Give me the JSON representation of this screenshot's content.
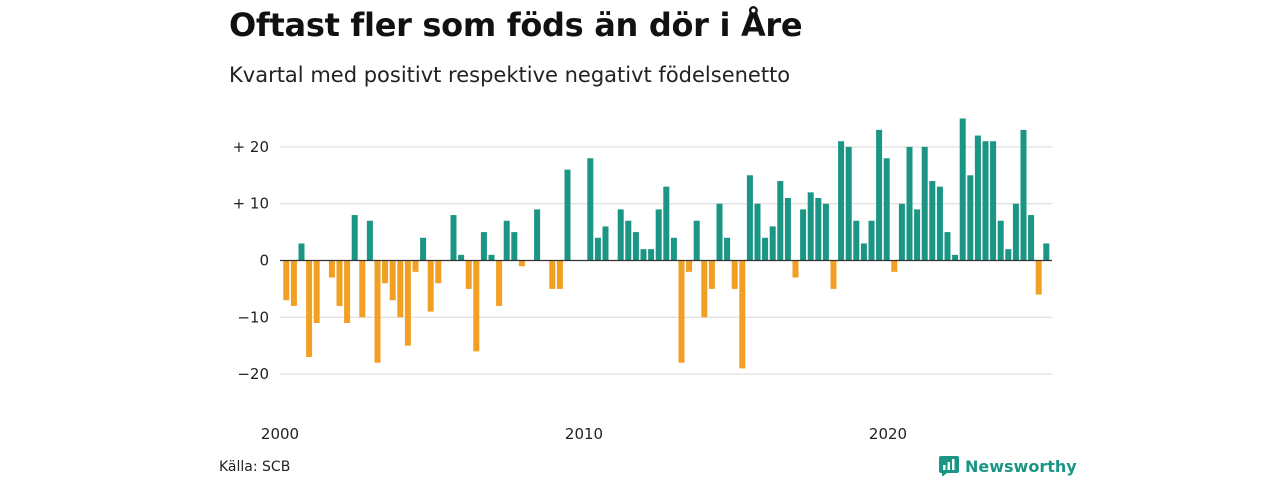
{
  "title": "Oftast fler som föds än dör i Åre",
  "subtitle": "Kvartal med positivt respektive negativt födelsenetto",
  "source": "Källa: SCB",
  "brand": "Newsworthy",
  "colors": {
    "positive": "#1b9584",
    "negative": "#f2a023",
    "grid": "#d9d9d9",
    "zero": "#333333"
  },
  "chart_data": {
    "type": "bar",
    "x_start": "2000-Q1",
    "x_ticks": [
      "2000",
      "2010",
      "2020"
    ],
    "y_ticks": [
      "+ 20",
      "+ 10",
      "0",
      "−10",
      "−20"
    ],
    "ylim": [
      -24,
      24
    ],
    "categories": [
      "2000-Q1",
      "2000-Q2",
      "2000-Q3",
      "2000-Q4",
      "2001-Q1",
      "2001-Q2",
      "2001-Q3",
      "2001-Q4",
      "2002-Q1",
      "2002-Q2",
      "2002-Q3",
      "2002-Q4",
      "2003-Q1",
      "2003-Q2",
      "2003-Q3",
      "2003-Q4",
      "2004-Q1",
      "2004-Q2",
      "2004-Q3",
      "2004-Q4",
      "2005-Q1",
      "2005-Q2",
      "2005-Q3",
      "2005-Q4",
      "2006-Q1",
      "2006-Q2",
      "2006-Q3",
      "2006-Q4",
      "2007-Q1",
      "2007-Q2",
      "2007-Q3",
      "2007-Q4",
      "2008-Q1",
      "2008-Q2",
      "2008-Q3",
      "2008-Q4",
      "2009-Q1",
      "2009-Q2",
      "2009-Q3",
      "2009-Q4",
      "2010-Q1",
      "2010-Q2",
      "2010-Q3",
      "2010-Q4",
      "2011-Q1",
      "2011-Q2",
      "2011-Q3",
      "2011-Q4",
      "2012-Q1",
      "2012-Q2",
      "2012-Q3",
      "2012-Q4",
      "2013-Q1",
      "2013-Q2",
      "2013-Q3",
      "2013-Q4",
      "2014-Q1",
      "2014-Q2",
      "2014-Q3",
      "2014-Q4",
      "2015-Q1",
      "2015-Q2",
      "2015-Q3",
      "2015-Q4",
      "2016-Q1",
      "2016-Q2",
      "2016-Q3",
      "2016-Q4",
      "2017-Q1",
      "2017-Q2",
      "2017-Q3",
      "2017-Q4",
      "2018-Q1",
      "2018-Q2",
      "2018-Q3",
      "2018-Q4",
      "2019-Q1",
      "2019-Q2",
      "2019-Q3",
      "2019-Q4",
      "2020-Q1",
      "2020-Q2",
      "2020-Q3",
      "2020-Q4",
      "2021-Q1",
      "2021-Q2",
      "2021-Q3",
      "2021-Q4",
      "2022-Q1",
      "2022-Q2",
      "2022-Q3",
      "2022-Q4",
      "2023-Q1",
      "2023-Q2",
      "2023-Q3",
      "2023-Q4",
      "2024-Q1",
      "2024-Q2",
      "2024-Q3",
      "2024-Q4",
      "2025-Q1"
    ],
    "values": [
      -7,
      -8,
      3,
      -17,
      -11,
      0,
      -3,
      -8,
      -11,
      8,
      -10,
      7,
      -18,
      -4,
      -7,
      -10,
      -15,
      -2,
      4,
      -9,
      -4,
      0,
      8,
      1,
      -5,
      -16,
      5,
      1,
      -8,
      7,
      5,
      -1,
      0,
      9,
      0,
      -5,
      -5,
      16,
      0,
      0,
      18,
      4,
      6,
      0,
      9,
      7,
      5,
      2,
      2,
      9,
      13,
      4,
      -18,
      -2,
      7,
      -10,
      -5,
      10,
      4,
      -5,
      -19,
      15,
      10,
      4,
      6,
      14,
      11,
      -3,
      9,
      12,
      11,
      10,
      -5,
      21,
      20,
      7,
      3,
      7,
      23,
      18,
      -2,
      10,
      20,
      9,
      20,
      14,
      13,
      5,
      1,
      25,
      15,
      22,
      21,
      21,
      7,
      2,
      10,
      23,
      8,
      -6,
      3
    ]
  }
}
